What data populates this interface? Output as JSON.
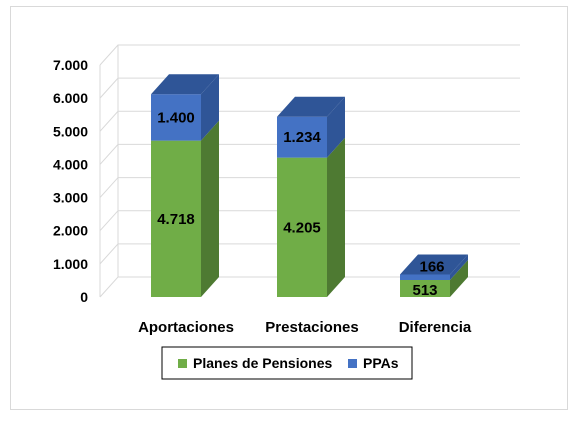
{
  "chart_data": {
    "type": "bar",
    "stacked": true,
    "three_d": true,
    "categories": [
      "Aportaciones",
      "Prestaciones",
      "Diferencia"
    ],
    "series": [
      {
        "name": "Planes de Pensiones",
        "values": [
          4718,
          4205,
          513
        ],
        "labels": [
          "4.718",
          "4.205",
          "513"
        ],
        "color": "#70ad47",
        "color_side": "#4e7a32",
        "color_top": "#8cc063"
      },
      {
        "name": "PPAs",
        "values": [
          1400,
          1234,
          166
        ],
        "labels": [
          "1.400",
          "1.234",
          "166"
        ],
        "color": "#4472c4",
        "color_side": "#2f5597",
        "color_top": "#2f5597"
      }
    ],
    "yticks": [
      "0",
      "1.000",
      "2.000",
      "3.000",
      "4.000",
      "5.000",
      "6.000",
      "7.000"
    ],
    "ylim": [
      0,
      7000
    ],
    "grid": true,
    "legend_position": "bottom"
  }
}
